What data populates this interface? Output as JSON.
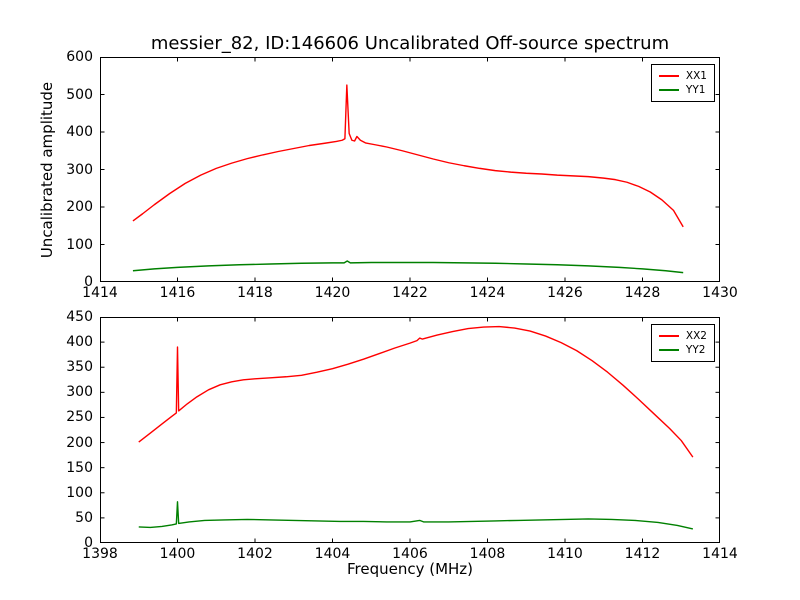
{
  "title": "messier_82, ID:146606 Uncalibrated Off-source spectrum",
  "chart_data": [
    {
      "type": "line",
      "xlabel": "",
      "ylabel": "Uncalibrated amplitude",
      "xlim": [
        1414,
        1430
      ],
      "ylim": [
        0,
        600
      ],
      "xticks": [
        1414,
        1416,
        1418,
        1420,
        1422,
        1424,
        1426,
        1428,
        1430
      ],
      "yticks": [
        0,
        100,
        200,
        300,
        400,
        500,
        600
      ],
      "grid": false,
      "legend_position": "upper right",
      "series": [
        {
          "name": "XX1",
          "color": "#ff0000",
          "points": [
            [
              1414.85,
              163
            ],
            [
              1415.1,
              182
            ],
            [
              1415.4,
              206
            ],
            [
              1415.8,
              236
            ],
            [
              1416.2,
              263
            ],
            [
              1416.6,
              285
            ],
            [
              1417.0,
              303
            ],
            [
              1417.4,
              317
            ],
            [
              1417.8,
              329
            ],
            [
              1418.2,
              339
            ],
            [
              1418.6,
              348
            ],
            [
              1419.0,
              356
            ],
            [
              1419.4,
              364
            ],
            [
              1419.8,
              370
            ],
            [
              1420.1,
              375
            ],
            [
              1420.25,
              378
            ],
            [
              1420.32,
              382
            ],
            [
              1420.37,
              525
            ],
            [
              1420.43,
              396
            ],
            [
              1420.5,
              378
            ],
            [
              1420.57,
              376
            ],
            [
              1420.63,
              388
            ],
            [
              1420.72,
              378
            ],
            [
              1420.85,
              371
            ],
            [
              1421.1,
              366
            ],
            [
              1421.4,
              360
            ],
            [
              1421.8,
              350
            ],
            [
              1422.2,
              339
            ],
            [
              1422.6,
              328
            ],
            [
              1423.0,
              318
            ],
            [
              1423.4,
              310
            ],
            [
              1423.8,
              303
            ],
            [
              1424.2,
              297
            ],
            [
              1424.6,
              293
            ],
            [
              1425.0,
              290
            ],
            [
              1425.4,
              288
            ],
            [
              1425.8,
              285
            ],
            [
              1426.2,
              283
            ],
            [
              1426.6,
              281
            ],
            [
              1427.0,
              277
            ],
            [
              1427.3,
              273
            ],
            [
              1427.6,
              266
            ],
            [
              1427.9,
              255
            ],
            [
              1428.2,
              240
            ],
            [
              1428.5,
              219
            ],
            [
              1428.8,
              191
            ],
            [
              1429.05,
              147
            ]
          ]
        },
        {
          "name": "YY1",
          "color": "#008000",
          "points": [
            [
              1414.85,
              30
            ],
            [
              1415.4,
              35
            ],
            [
              1416.0,
              39
            ],
            [
              1416.8,
              43
            ],
            [
              1417.6,
              46
            ],
            [
              1418.4,
              48
            ],
            [
              1419.2,
              50
            ],
            [
              1420.0,
              51
            ],
            [
              1420.3,
              51
            ],
            [
              1420.38,
              56
            ],
            [
              1420.46,
              51
            ],
            [
              1421.0,
              52
            ],
            [
              1421.8,
              52
            ],
            [
              1422.6,
              52
            ],
            [
              1423.4,
              51
            ],
            [
              1424.2,
              50
            ],
            [
              1425.0,
              48
            ],
            [
              1425.8,
              46
            ],
            [
              1426.6,
              43
            ],
            [
              1427.4,
              39
            ],
            [
              1428.0,
              35
            ],
            [
              1428.6,
              30
            ],
            [
              1429.05,
              25
            ]
          ]
        }
      ]
    },
    {
      "type": "line",
      "xlabel": "Frequency (MHz)",
      "ylabel": "",
      "xlim": [
        1398,
        1414
      ],
      "ylim": [
        0,
        450
      ],
      "xticks": [
        1398,
        1400,
        1402,
        1404,
        1406,
        1408,
        1410,
        1412,
        1414
      ],
      "yticks": [
        0,
        50,
        100,
        150,
        200,
        250,
        300,
        350,
        400,
        450
      ],
      "grid": false,
      "legend_position": "upper right",
      "series": [
        {
          "name": "XX2",
          "color": "#ff0000",
          "points": [
            [
              1399.0,
              201
            ],
            [
              1399.3,
              219
            ],
            [
              1399.6,
              237
            ],
            [
              1399.85,
              252
            ],
            [
              1399.97,
              259
            ],
            [
              1400.0,
              390
            ],
            [
              1400.03,
              263
            ],
            [
              1400.25,
              277
            ],
            [
              1400.5,
              291
            ],
            [
              1400.8,
              305
            ],
            [
              1401.1,
              315
            ],
            [
              1401.4,
              321
            ],
            [
              1401.7,
              325
            ],
            [
              1402.0,
              327
            ],
            [
              1402.4,
              329
            ],
            [
              1402.8,
              331
            ],
            [
              1403.2,
              334
            ],
            [
              1403.6,
              340
            ],
            [
              1404.0,
              347
            ],
            [
              1404.4,
              356
            ],
            [
              1404.8,
              366
            ],
            [
              1405.2,
              377
            ],
            [
              1405.6,
              388
            ],
            [
              1406.0,
              398
            ],
            [
              1406.18,
              403
            ],
            [
              1406.25,
              408
            ],
            [
              1406.32,
              406
            ],
            [
              1406.7,
              414
            ],
            [
              1407.1,
              421
            ],
            [
              1407.5,
              427
            ],
            [
              1407.9,
              430
            ],
            [
              1408.3,
              431
            ],
            [
              1408.7,
              428
            ],
            [
              1409.1,
              422
            ],
            [
              1409.5,
              412
            ],
            [
              1409.9,
              399
            ],
            [
              1410.3,
              383
            ],
            [
              1410.7,
              363
            ],
            [
              1411.1,
              340
            ],
            [
              1411.5,
              314
            ],
            [
              1411.9,
              286
            ],
            [
              1412.3,
              257
            ],
            [
              1412.7,
              228
            ],
            [
              1413.0,
              204
            ],
            [
              1413.3,
              171
            ]
          ]
        },
        {
          "name": "YY2",
          "color": "#008000",
          "points": [
            [
              1399.0,
              32
            ],
            [
              1399.3,
              31
            ],
            [
              1399.6,
              33
            ],
            [
              1399.85,
              36
            ],
            [
              1399.97,
              38
            ],
            [
              1400.0,
              82
            ],
            [
              1400.03,
              39
            ],
            [
              1400.3,
              42
            ],
            [
              1400.7,
              45
            ],
            [
              1401.2,
              46
            ],
            [
              1401.8,
              47
            ],
            [
              1402.4,
              46
            ],
            [
              1403.0,
              45
            ],
            [
              1403.6,
              44
            ],
            [
              1404.2,
              43
            ],
            [
              1404.8,
              43
            ],
            [
              1405.4,
              42
            ],
            [
              1406.0,
              42
            ],
            [
              1406.25,
              45
            ],
            [
              1406.35,
              42
            ],
            [
              1407.0,
              42
            ],
            [
              1407.6,
              43
            ],
            [
              1408.2,
              44
            ],
            [
              1408.8,
              45
            ],
            [
              1409.4,
              46
            ],
            [
              1410.0,
              47
            ],
            [
              1410.6,
              48
            ],
            [
              1411.2,
              47
            ],
            [
              1411.8,
              45
            ],
            [
              1412.4,
              41
            ],
            [
              1412.9,
              35
            ],
            [
              1413.3,
              28
            ]
          ]
        }
      ]
    }
  ]
}
